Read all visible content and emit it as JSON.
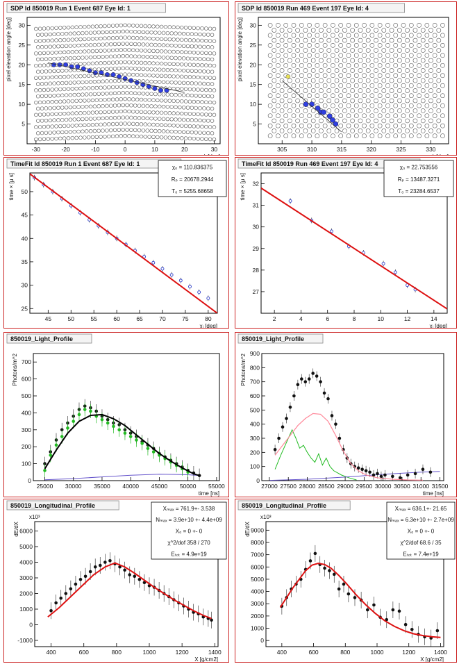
{
  "chart_data": [
    {
      "id": "sdp-1",
      "type": "scatter",
      "title": "SDP Id 850019 Run 1 Event 687 Eye Id: 1",
      "xlabel": "ϕ [deg]",
      "ylabel": "pixel elevation angle [deg]",
      "xlim": [
        -33,
        32
      ],
      "ylim": [
        0,
        32
      ],
      "xticks": [
        -30,
        -20,
        -10,
        0,
        10,
        20,
        30
      ],
      "yticks": [
        5,
        10,
        15,
        20,
        25,
        30
      ],
      "grid": "camera-pixels",
      "camera": {
        "x_range": [
          -30,
          30
        ],
        "y_range": [
          2,
          30
        ]
      },
      "series": [
        {
          "x": [
            -24,
            -22,
            -20,
            -18,
            -16,
            -14,
            -12,
            -10,
            -8,
            -6,
            -4,
            -2,
            0,
            2,
            4,
            6,
            8,
            10,
            12,
            14
          ],
          "y": [
            20,
            20,
            20,
            19.5,
            19.5,
            19,
            18.5,
            18,
            18,
            17.5,
            17.5,
            17,
            16.5,
            16,
            15.5,
            15,
            14.5,
            14,
            13.5,
            13.5
          ]
        }
      ],
      "fit_line": {
        "x": [
          -26,
          20
        ],
        "y": [
          20.5,
          13
        ]
      }
    },
    {
      "id": "sdp-4",
      "type": "scatter",
      "title": "SDP Id 850019 Run 469 Event 197 Eye Id: 4",
      "xlabel": "ϕ [deg]",
      "ylabel": "pixel elevation angle [deg]",
      "xlim": [
        301,
        333
      ],
      "ylim": [
        0,
        32
      ],
      "xticks": [
        305,
        310,
        315,
        320,
        325,
        330
      ],
      "yticks": [
        5,
        10,
        15,
        20,
        25,
        30
      ],
      "grid": "camera-pixels",
      "camera": {
        "x_range": [
          303,
          332
        ],
        "y_range": [
          2,
          30
        ]
      },
      "series": [
        {
          "x": [
            309,
            310,
            311,
            311.5,
            312,
            313,
            313.5,
            314
          ],
          "y": [
            10,
            10,
            9,
            8,
            8,
            7,
            6,
            5
          ]
        }
      ],
      "fit_line": {
        "x": [
          305,
          315
        ],
        "y": [
          16,
          3
        ]
      }
    },
    {
      "id": "timefit-1",
      "type": "scatter",
      "title": "TimeFit Id 850019 Run 1 Event 687 Eye Id: 1",
      "xlabel": "χᵢ [deg]",
      "ylabel": "time × [μ s]",
      "xlim": [
        41,
        82
      ],
      "ylim": [
        24,
        54
      ],
      "xticks": [
        45,
        50,
        55,
        60,
        65,
        70,
        75,
        80
      ],
      "yticks": [
        25,
        30,
        35,
        40,
        45,
        50
      ],
      "grid": false,
      "stats": [
        "χ₀ = 110.836375",
        "Rₚ = 20678.2944",
        "T₀ = 5255.68658"
      ],
      "series": [
        {
          "x": [
            42,
            44,
            46,
            48,
            50,
            52,
            54,
            56,
            58,
            60,
            62,
            64,
            66,
            68,
            70,
            72,
            74,
            76,
            78,
            80
          ],
          "y": [
            53,
            51.5,
            50,
            48.5,
            47,
            45.5,
            44,
            42.7,
            41.3,
            40,
            38.7,
            37.4,
            36.1,
            34.8,
            33.5,
            32.2,
            31,
            29.7,
            28.5,
            27.2
          ]
        }
      ],
      "fit_line": {
        "x": [
          41,
          82
        ],
        "y": [
          53.8,
          24
        ]
      }
    },
    {
      "id": "timefit-4",
      "type": "scatter",
      "title": "TimeFit Id 850019 Run 469 Event 197 Eye Id: 4",
      "xlabel": "χᵢ [deg]",
      "ylabel": "time × [μ s]",
      "xlim": [
        1,
        15
      ],
      "ylim": [
        26,
        32.5
      ],
      "xticks": [
        2,
        4,
        6,
        8,
        10,
        12,
        14
      ],
      "yticks": [
        27,
        28,
        29,
        30,
        31,
        32
      ],
      "grid": false,
      "stats": [
        "χ₀ = 22.753556",
        "Rₚ = 13487.3271",
        "T₀ = 23284.6537"
      ],
      "series": [
        {
          "x": [
            3.2,
            4.8,
            6.3,
            7.6,
            8.7,
            10.2,
            11.1,
            12,
            12.6
          ],
          "y": [
            31.2,
            30.3,
            29.8,
            29.1,
            28.8,
            28.3,
            27.9,
            27.3,
            27.1
          ]
        }
      ],
      "fit_line": {
        "x": [
          1,
          15
        ],
        "y": [
          31.8,
          26.2
        ]
      }
    },
    {
      "id": "light-1",
      "type": "scatter",
      "title": "850019_Light_Profile",
      "xlabel": "time [ns]",
      "ylabel": "Photons/m^2",
      "xlim": [
        23000,
        55500
      ],
      "ylim": [
        0,
        750
      ],
      "xticks": [
        25000,
        30000,
        35000,
        40000,
        45000,
        50000,
        55000
      ],
      "yticks": [
        0,
        100,
        200,
        300,
        400,
        500,
        600,
        700
      ],
      "grid": false,
      "series": [
        {
          "x": [
            25000,
            26000,
            27000,
            28000,
            29000,
            30000,
            31000,
            32000,
            33000,
            34000,
            35000,
            36000,
            37000,
            38000,
            39000,
            40000,
            41000,
            42000,
            43000,
            44000,
            45000,
            46000,
            47000,
            48000,
            49000,
            50000,
            51000,
            52000
          ],
          "y": [
            100,
            170,
            240,
            300,
            340,
            380,
            420,
            440,
            430,
            410,
            380,
            360,
            340,
            330,
            300,
            280,
            260,
            230,
            210,
            190,
            160,
            140,
            120,
            100,
            80,
            60,
            45,
            30
          ]
        },
        {
          "x": [
            25000,
            26000,
            27000,
            28000,
            29000,
            30000,
            31000,
            32000,
            33000,
            34000,
            35000,
            36000,
            37000,
            38000,
            39000,
            40000,
            41000,
            42000,
            43000,
            44000,
            45000,
            46000,
            47000,
            48000,
            49000,
            50000
          ],
          "y": [
            60,
            150,
            210,
            260,
            310,
            350,
            390,
            420,
            410,
            380,
            360,
            340,
            320,
            300,
            280,
            260,
            240,
            220,
            190,
            170,
            150,
            130,
            110,
            90,
            70,
            50
          ]
        }
      ],
      "fit_line": {
        "x": [
          25000,
          27000,
          29000,
          31000,
          33000,
          35000,
          37000,
          39000,
          41000,
          43000,
          45000,
          47000,
          49000,
          51000,
          52000
        ],
        "y": [
          70,
          180,
          280,
          350,
          385,
          390,
          365,
          325,
          270,
          215,
          160,
          115,
          75,
          40,
          30
        ]
      },
      "curves": [
        {
          "x": [
            25000,
            30000,
            35000,
            40000,
            45000,
            50000,
            52000
          ],
          "y": [
            5,
            12,
            22,
            32,
            38,
            35,
            30
          ]
        }
      ]
    },
    {
      "id": "light-4",
      "type": "scatter",
      "title": "850019_Light_Profile",
      "xlabel": "time [ns]",
      "ylabel": "Photons/m^2",
      "xlim": [
        26800,
        31600
      ],
      "ylim": [
        0,
        900
      ],
      "xticks": [
        27000,
        27500,
        28000,
        28500,
        29000,
        29500,
        30000,
        30500,
        31000,
        31500
      ],
      "yticks": [
        0,
        100,
        200,
        300,
        400,
        500,
        600,
        700,
        800,
        900
      ],
      "grid": false,
      "series": [
        {
          "x": [
            27150,
            27250,
            27350,
            27450,
            27550,
            27650,
            27750,
            27850,
            27950,
            28050,
            28150,
            28250,
            28350,
            28450,
            28550,
            28650,
            28750,
            28850,
            28950,
            29050,
            29150,
            29250,
            29350,
            29450,
            29550,
            29650,
            29750,
            29850,
            29950,
            30050,
            30250,
            30450,
            30650,
            30850,
            31050,
            31250
          ],
          "y": [
            220,
            300,
            380,
            440,
            520,
            600,
            680,
            720,
            700,
            720,
            760,
            740,
            700,
            620,
            580,
            460,
            400,
            300,
            220,
            160,
            120,
            100,
            90,
            80,
            70,
            60,
            40,
            50,
            30,
            40,
            30,
            20,
            40,
            50,
            80,
            60
          ]
        }
      ],
      "fit_line": {
        "x": [
          27150,
          27350,
          27550,
          27750,
          27950,
          28150,
          28350,
          28550,
          28750,
          28950,
          29150,
          29350,
          29550,
          29850,
          30250,
          30650,
          31050
        ],
        "y": [
          180,
          250,
          320,
          390,
          440,
          475,
          470,
          420,
          320,
          210,
          120,
          70,
          40,
          20,
          10,
          5,
          3
        ]
      },
      "curves": [
        {
          "x": [
            27150,
            27300,
            27500,
            27600,
            27700,
            27800,
            27900,
            28000,
            28100,
            28200,
            28300,
            28400,
            28500,
            28600,
            28700,
            28900,
            29100,
            29300
          ],
          "y": [
            80,
            180,
            300,
            360,
            300,
            230,
            250,
            200,
            160,
            130,
            190,
            110,
            160,
            100,
            70,
            40,
            20,
            5
          ]
        },
        {
          "x": [
            27000,
            28000,
            29000,
            30000,
            31000,
            31500
          ],
          "y": [
            2,
            10,
            25,
            45,
            60,
            65
          ]
        }
      ]
    },
    {
      "id": "long-1",
      "type": "scatter",
      "title": "850019_Longitudinal_Profile",
      "xlabel": "X [g/cm2]",
      "ylabel": "dE/dX",
      "exponent": "x10³",
      "xlim": [
        300,
        1420
      ],
      "ylim": [
        -1400,
        6600
      ],
      "xticks": [
        400,
        600,
        800,
        1000,
        1200,
        1400
      ],
      "yticks": [
        -1000,
        0,
        1000,
        2000,
        3000,
        4000,
        5000,
        6000
      ],
      "grid": false,
      "stats": [
        "Xₘₐₓ = 761.9+- 3.538",
        "Nₘₐₓ = 3.9e+10 +- 4.4e+09",
        "X₀ = 0 +- 0",
        "χ^2/dof 358 / 270",
        "Eₜₒₜ = 4.9e+19"
      ],
      "series": [
        {
          "x": [
            400,
            430,
            460,
            490,
            520,
            550,
            580,
            610,
            640,
            670,
            700,
            730,
            760,
            790,
            820,
            850,
            880,
            910,
            940,
            970,
            1000,
            1030,
            1060,
            1090,
            1120,
            1150,
            1180,
            1210,
            1240,
            1270,
            1300,
            1330,
            1360,
            1380
          ],
          "y": [
            900,
            1400,
            1700,
            2000,
            2300,
            2600,
            2900,
            3100,
            3400,
            3700,
            3800,
            4000,
            4100,
            3900,
            3700,
            3500,
            3200,
            3100,
            2900,
            2700,
            2500,
            2400,
            2200,
            2000,
            1800,
            1600,
            1400,
            1200,
            1000,
            800,
            700,
            500,
            400,
            300
          ]
        }
      ],
      "fit_line": {
        "x": [
          380,
          450,
          520,
          590,
          660,
          730,
          790,
          850,
          910,
          970,
          1030,
          1090,
          1150,
          1210,
          1270,
          1330,
          1380
        ],
        "y": [
          500,
          1100,
          1800,
          2500,
          3200,
          3700,
          3950,
          3700,
          3300,
          2850,
          2400,
          2000,
          1600,
          1250,
          900,
          600,
          400
        ]
      }
    },
    {
      "id": "long-4",
      "type": "scatter",
      "title": "850019_Longitudinal_Profile",
      "xlabel": "X [g/cm2]",
      "ylabel": "dE/dX",
      "exponent": "x10³",
      "xlim": [
        300,
        1420
      ],
      "ylim": [
        -500,
        9700
      ],
      "xticks": [
        400,
        600,
        800,
        1000,
        1200,
        1400
      ],
      "yticks": [
        0,
        1000,
        2000,
        3000,
        4000,
        5000,
        6000,
        7000,
        8000,
        9000
      ],
      "grid": false,
      "stats": [
        "Xₘₐₓ = 636.1+- 21.65",
        "Nₘₐₓ = 6.3e+10 +- 2.7e+09",
        "X₀ = 0 +- 0",
        "χ^2/dof 68.6 / 35",
        "Eₜₒₜ = 7.4e+19"
      ],
      "series": [
        {
          "x": [
            400,
            430,
            460,
            490,
            520,
            550,
            580,
            610,
            640,
            670,
            700,
            730,
            760,
            790,
            820,
            860,
            900,
            940,
            980,
            1020,
            1060,
            1100,
            1140,
            1180,
            1220,
            1260,
            1300,
            1340,
            1380
          ],
          "y": [
            2800,
            3500,
            4200,
            4600,
            5000,
            5800,
            6500,
            7100,
            6200,
            5900,
            5700,
            5400,
            4200,
            4600,
            3800,
            3500,
            3300,
            2500,
            2900,
            1900,
            1700,
            2500,
            2400,
            1300,
            900,
            500,
            300,
            200,
            800
          ]
        }
      ],
      "fit_line": {
        "x": [
          390,
          430,
          470,
          510,
          550,
          590,
          630,
          670,
          710,
          760,
          810,
          870,
          930,
          990,
          1050,
          1110,
          1170,
          1230,
          1290,
          1350,
          1400
        ],
        "y": [
          2700,
          3500,
          4300,
          5000,
          5700,
          6150,
          6300,
          6200,
          5900,
          5300,
          4600,
          3700,
          2900,
          2200,
          1600,
          1150,
          800,
          550,
          400,
          300,
          250
        ]
      }
    }
  ],
  "colors": {
    "frame": "#cc2222",
    "hit": "#2f3fe0",
    "fit": "#dd1111",
    "green": "#22bb22",
    "blue_curve": "#6655cc",
    "pink": "#ff8899",
    "yellow": "#e8e055"
  }
}
